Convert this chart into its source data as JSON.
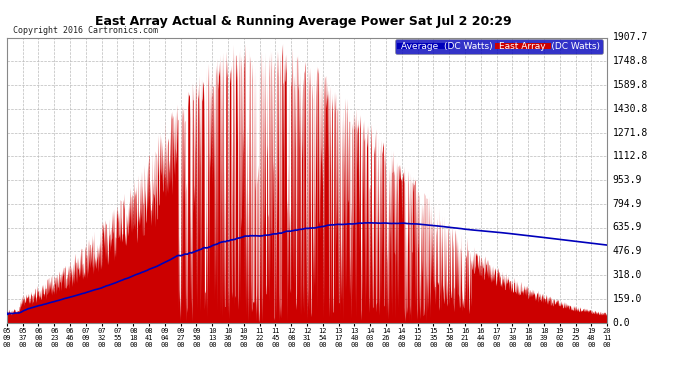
{
  "title": "East Array Actual & Running Average Power Sat Jul 2 20:29",
  "copyright": "Copyright 2016 Cartronics.com",
  "legend_labels": [
    "Average  (DC Watts)",
    "East Array  (DC Watts)"
  ],
  "legend_colors": [
    "#0000bb",
    "#cc0000"
  ],
  "yticks": [
    0.0,
    159.0,
    318.0,
    476.9,
    635.9,
    794.9,
    953.9,
    1112.8,
    1271.8,
    1430.8,
    1589.8,
    1748.8,
    1907.7
  ],
  "ymax": 1907.7,
  "background_color": "#ffffff",
  "grid_color": "#bbbbbb",
  "area_color": "#cc0000",
  "avg_color": "#0000bb",
  "xtick_labels": [
    "05:09",
    "05:37",
    "06:00",
    "06:23",
    "06:46",
    "07:09",
    "07:32",
    "07:55",
    "08:18",
    "08:41",
    "09:04",
    "09:27",
    "09:50",
    "10:13",
    "10:36",
    "10:59",
    "11:22",
    "11:45",
    "12:08",
    "12:31",
    "12:54",
    "13:17",
    "13:40",
    "14:03",
    "14:26",
    "14:49",
    "15:12",
    "15:35",
    "15:58",
    "16:21",
    "16:44",
    "17:07",
    "17:30",
    "18:16",
    "18:39",
    "19:02",
    "19:25",
    "19:48",
    "20:11"
  ]
}
